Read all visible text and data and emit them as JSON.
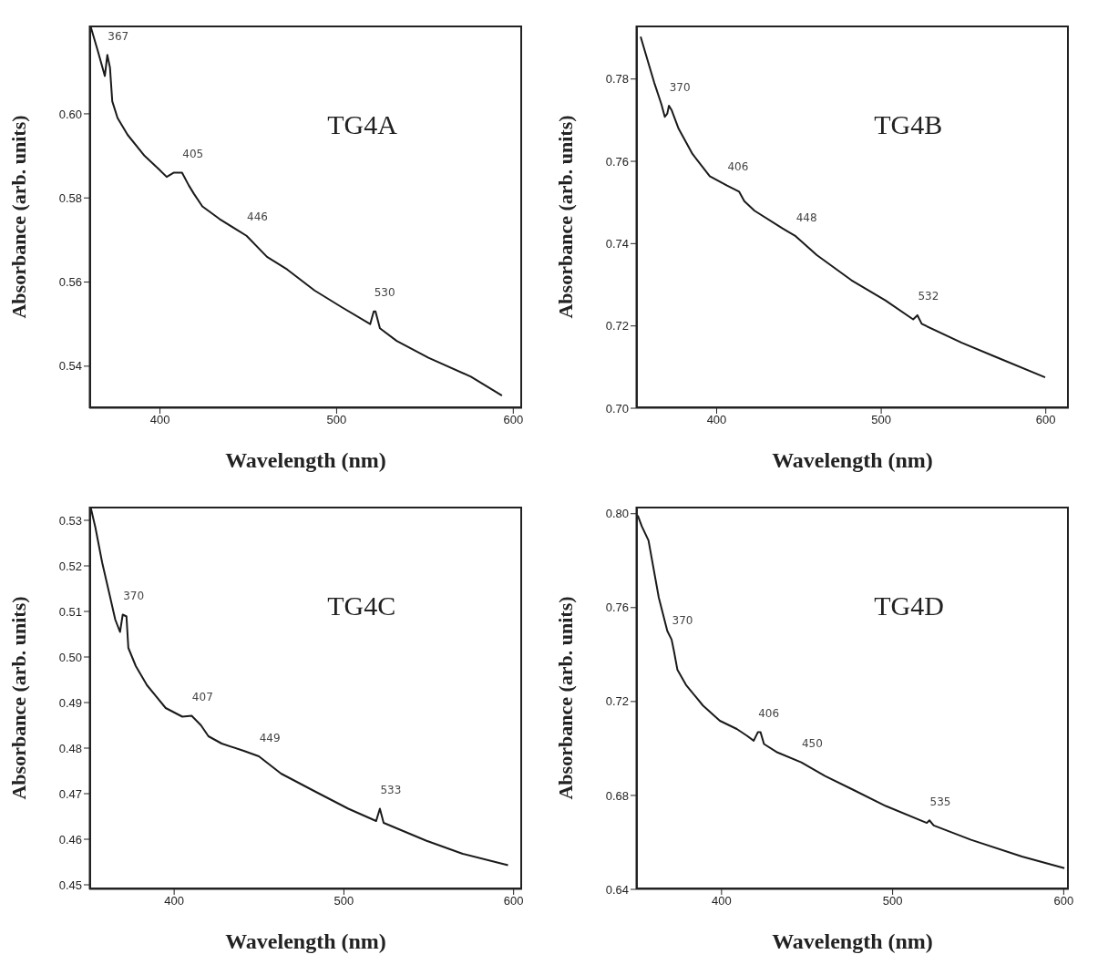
{
  "chart_data": [
    {
      "type": "line",
      "title": "TG4A",
      "xlabel": "Wavelength (nm)",
      "ylabel": "Absorbance (arb. units)",
      "color": "#1a1a1a",
      "x": [
        360.6,
        364.8,
        368.8,
        370.2,
        371.7,
        373,
        376,
        381.7,
        391.3,
        399,
        403.8,
        407.7,
        412.5,
        416.3,
        419.2,
        424,
        433.7,
        449,
        460.6,
        472,
        487.5,
        503,
        519,
        521,
        522,
        524.5,
        534,
        552,
        576,
        593.6
      ],
      "values": [
        0.621,
        0.615,
        0.609,
        0.614,
        0.611,
        0.603,
        0.599,
        0.595,
        0.59,
        0.587,
        0.585,
        0.586,
        0.586,
        0.583,
        0.581,
        0.578,
        0.575,
        0.571,
        0.566,
        0.563,
        0.558,
        0.554,
        0.55,
        0.553,
        0.553,
        0.549,
        0.546,
        0.542,
        0.5375,
        0.533
      ],
      "xlim": [
        360,
        605
      ],
      "xticks": [
        400,
        500,
        600
      ],
      "ylim": [
        0.53,
        0.621
      ],
      "yticks": [
        {
          "value": 0.54,
          "label": "0.54"
        },
        {
          "value": 0.56,
          "label": "0.56"
        },
        {
          "value": 0.58,
          "label": "0.58"
        },
        {
          "value": 0.6,
          "label": "0.60"
        }
      ],
      "annotations": [
        {
          "text": "367",
          "x": 370.2,
          "y": 0.614
        },
        {
          "text": "405",
          "x": 412.5,
          "y": 0.586
        },
        {
          "text": "446",
          "x": 449,
          "y": 0.571
        },
        {
          "text": "530",
          "x": 521,
          "y": 0.553
        }
      ]
    },
    {
      "type": "line",
      "title": "TG4B",
      "xlabel": "Wavelength (nm)",
      "ylabel": "Absorbance (arb. units)",
      "color": "#1a1a1a",
      "x": [
        353.8,
        358,
        362,
        366.4,
        368.5,
        370,
        371,
        372.7,
        376.9,
        385.3,
        395.8,
        406.3,
        413.7,
        416.8,
        423,
        440,
        448,
        460.9,
        481.9,
        502.5,
        519.4,
        522,
        524.6,
        548.9,
        570,
        599.6
      ],
      "values": [
        0.7903,
        0.7846,
        0.7792,
        0.7739,
        0.7708,
        0.7716,
        0.7735,
        0.7724,
        0.7679,
        0.7618,
        0.7564,
        0.7541,
        0.7526,
        0.7503,
        0.748,
        0.7437,
        0.7418,
        0.7372,
        0.7311,
        0.7262,
        0.7216,
        0.7226,
        0.7205,
        0.7159,
        0.7124,
        0.7075
      ],
      "xlim": [
        351,
        614
      ],
      "xticks": [
        400,
        500,
        600
      ],
      "ylim": [
        0.7,
        0.793
      ],
      "yticks": [
        {
          "value": 0.7,
          "label": "0.70"
        },
        {
          "value": 0.72,
          "label": "0.72"
        },
        {
          "value": 0.74,
          "label": "0.74"
        },
        {
          "value": 0.76,
          "label": "0.76"
        },
        {
          "value": 0.78,
          "label": "0.78"
        }
      ],
      "annotations": [
        {
          "text": "370",
          "x": 371,
          "y": 0.7735
        },
        {
          "text": "406",
          "x": 406.3,
          "y": 0.7541
        },
        {
          "text": "448",
          "x": 448,
          "y": 0.7418
        },
        {
          "text": "532",
          "x": 522,
          "y": 0.7226
        }
      ]
    },
    {
      "type": "line",
      "title": "TG4C",
      "xlabel": "Wavelength (nm)",
      "ylabel": "Absorbance (arb. units)",
      "color": "#1a1a1a",
      "x": [
        350.9,
        353.6,
        357.6,
        362,
        365.3,
        368.1,
        369.7,
        371.9,
        373,
        377.4,
        384,
        395,
        404.8,
        410.3,
        415.8,
        420.2,
        428,
        441,
        449.9,
        463,
        482.9,
        502.6,
        519,
        521.2,
        523.4,
        548.4,
        570,
        596.7
      ],
      "values": [
        0.5327,
        0.5284,
        0.5207,
        0.5136,
        0.5082,
        0.5055,
        0.5093,
        0.5089,
        0.502,
        0.498,
        0.4938,
        0.4888,
        0.4869,
        0.4871,
        0.485,
        0.4826,
        0.481,
        0.4794,
        0.4782,
        0.4744,
        0.4705,
        0.4667,
        0.464,
        0.4667,
        0.4636,
        0.4597,
        0.4568,
        0.4543
      ],
      "xlim": [
        350,
        605
      ],
      "xticks": [
        400,
        500,
        600
      ],
      "ylim": [
        0.449,
        0.533
      ],
      "yticks": [
        {
          "value": 0.45,
          "label": "0.45"
        },
        {
          "value": 0.46,
          "label": "0.46"
        },
        {
          "value": 0.47,
          "label": "0.47"
        },
        {
          "value": 0.48,
          "label": "0.48"
        },
        {
          "value": 0.49,
          "label": "0.49"
        },
        {
          "value": 0.5,
          "label": "0.50"
        },
        {
          "value": 0.51,
          "label": "0.51"
        },
        {
          "value": 0.52,
          "label": "0.52"
        },
        {
          "value": 0.53,
          "label": "0.53"
        }
      ],
      "annotations": [
        {
          "text": "370",
          "x": 369.7,
          "y": 0.5093
        },
        {
          "text": "407",
          "x": 410.3,
          "y": 0.4871
        },
        {
          "text": "449",
          "x": 449.9,
          "y": 0.4782
        },
        {
          "text": "533",
          "x": 521.2,
          "y": 0.4667
        }
      ]
    },
    {
      "type": "line",
      "title": "TG4D",
      "xlabel": "Wavelength (nm)",
      "ylabel": "Absorbance (arb. units)",
      "color": "#1a1a1a",
      "x": [
        351,
        353.4,
        357.3,
        363.3,
        368.3,
        370.8,
        372.2,
        374.2,
        379.2,
        389.1,
        399,
        408.9,
        414.9,
        418.8,
        421.2,
        422.8,
        424.8,
        432.7,
        446.6,
        460.5,
        476.4,
        496,
        520,
        521.5,
        524,
        545.8,
        575.6,
        600.4
      ],
      "values": [
        0.7993,
        0.7946,
        0.7886,
        0.7643,
        0.75,
        0.7464,
        0.7414,
        0.7335,
        0.7271,
        0.7183,
        0.7118,
        0.7083,
        0.7054,
        0.7033,
        0.7069,
        0.7069,
        0.7019,
        0.6983,
        0.6941,
        0.6883,
        0.6826,
        0.6755,
        0.6683,
        0.6694,
        0.6672,
        0.6611,
        0.654,
        0.649
      ],
      "xlim": [
        350,
        603
      ],
      "xticks": [
        400,
        500,
        600
      ],
      "ylim": [
        0.64,
        0.803
      ],
      "yticks": [
        {
          "value": 0.64,
          "label": "0.64"
        },
        {
          "value": 0.68,
          "label": "0.68"
        },
        {
          "value": 0.72,
          "label": "0.72"
        },
        {
          "value": 0.76,
          "label": "0.76"
        },
        {
          "value": 0.8,
          "label": "0.80"
        }
      ],
      "annotations": [
        {
          "text": "370",
          "x": 370.8,
          "y": 0.7464
        },
        {
          "text": "406",
          "x": 421.2,
          "y": 0.7069
        },
        {
          "text": "450",
          "x": 446.6,
          "y": 0.6941
        },
        {
          "text": "535",
          "x": 521.5,
          "y": 0.6694
        }
      ]
    }
  ]
}
